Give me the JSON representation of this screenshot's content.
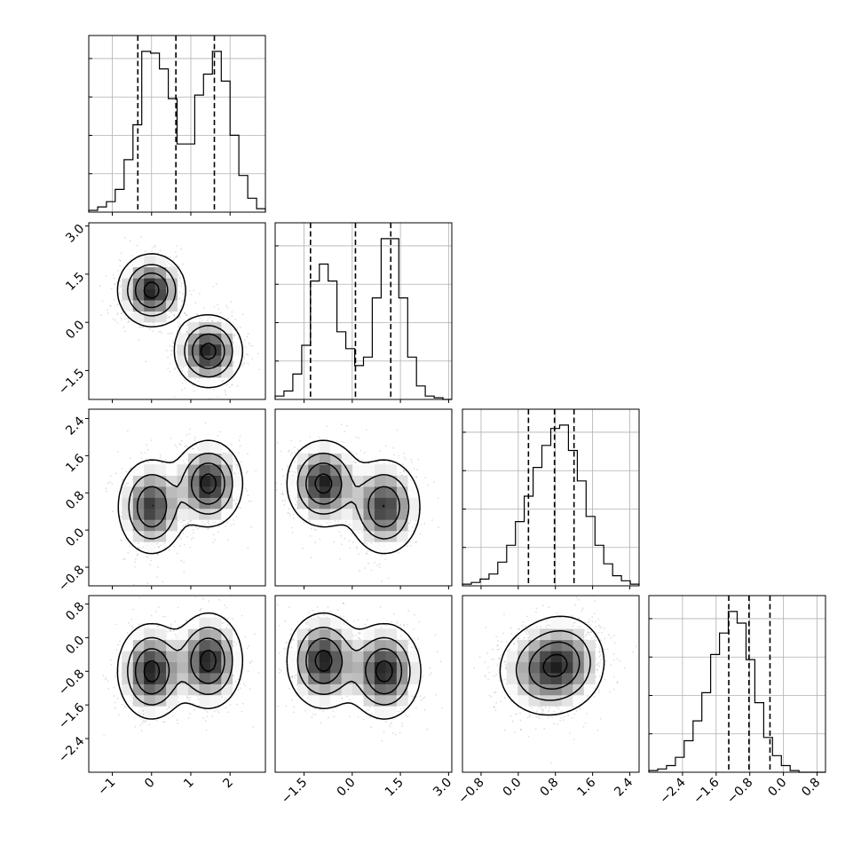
{
  "chart_data": {
    "type": "corner",
    "grid": true,
    "parameters": 4,
    "ranges": [
      [
        -1.6,
        2.9
      ],
      [
        -2.4,
        3.1
      ],
      [
        -1.2,
        2.6
      ],
      [
        -3.2,
        1.0
      ]
    ],
    "ticks": [
      {
        "values": [
          -1,
          0,
          1,
          2
        ],
        "labels": [
          "−1",
          "0",
          "1",
          "2"
        ]
      },
      {
        "values": [
          -1.5,
          0.0,
          1.5,
          3.0
        ],
        "labels": [
          "−1.5",
          "0.0",
          "1.5",
          "3.0"
        ]
      },
      {
        "values": [
          -0.8,
          0.0,
          0.8,
          1.6,
          2.4
        ],
        "labels": [
          "−0.8",
          "0.0",
          "0.8",
          "1.6",
          "2.4"
        ]
      },
      {
        "values": [
          -2.4,
          -1.6,
          -0.8,
          0.0,
          0.8
        ],
        "labels": [
          "−2.4",
          "−1.6",
          "−0.8",
          "0.0",
          "0.8"
        ]
      }
    ],
    "mixture_components": [
      {
        "means": [
          0.0,
          1.0,
          0.5,
          -0.8
        ],
        "sds": [
          0.42,
          0.55,
          0.5,
          0.55
        ],
        "weight": 0.5
      },
      {
        "means": [
          1.45,
          -0.9,
          1.0,
          -0.55
        ],
        "sds": [
          0.42,
          0.55,
          0.45,
          0.55
        ],
        "weight": 0.5
      }
    ],
    "quantile_lines": [
      [
        -0.35,
        0.62,
        1.6
      ],
      [
        -1.3,
        0.1,
        1.2
      ],
      [
        0.22,
        0.78,
        1.2
      ],
      [
        -1.3,
        -0.82,
        -0.32
      ]
    ],
    "histograms": [
      {
        "bin_start": -1.6,
        "bin_width": 0.225,
        "counts": [
          1,
          3,
          6,
          13,
          30,
          50,
          92,
          91,
          82,
          65,
          39,
          39,
          67,
          79,
          92,
          75,
          44,
          21,
          8,
          2
        ]
      },
      {
        "bin_start": -2.4,
        "bin_width": 0.275,
        "counts": [
          2,
          5,
          15,
          32,
          70,
          80,
          70,
          40,
          30,
          20,
          25,
          60,
          95,
          95,
          60,
          25,
          8,
          2,
          1,
          0
        ]
      },
      {
        "bin_start": -1.2,
        "bin_width": 0.19,
        "counts": [
          1,
          2,
          4,
          7,
          14,
          24,
          38,
          53,
          70,
          83,
          93,
          95,
          80,
          62,
          41,
          24,
          13,
          6,
          3,
          1
        ]
      },
      {
        "bin_start": -3.2,
        "bin_width": 0.21,
        "counts": [
          1,
          2,
          4,
          9,
          19,
          31,
          48,
          71,
          84,
          97,
          90,
          68,
          42,
          21,
          10,
          4,
          1,
          0,
          0,
          0
        ]
      }
    ]
  }
}
